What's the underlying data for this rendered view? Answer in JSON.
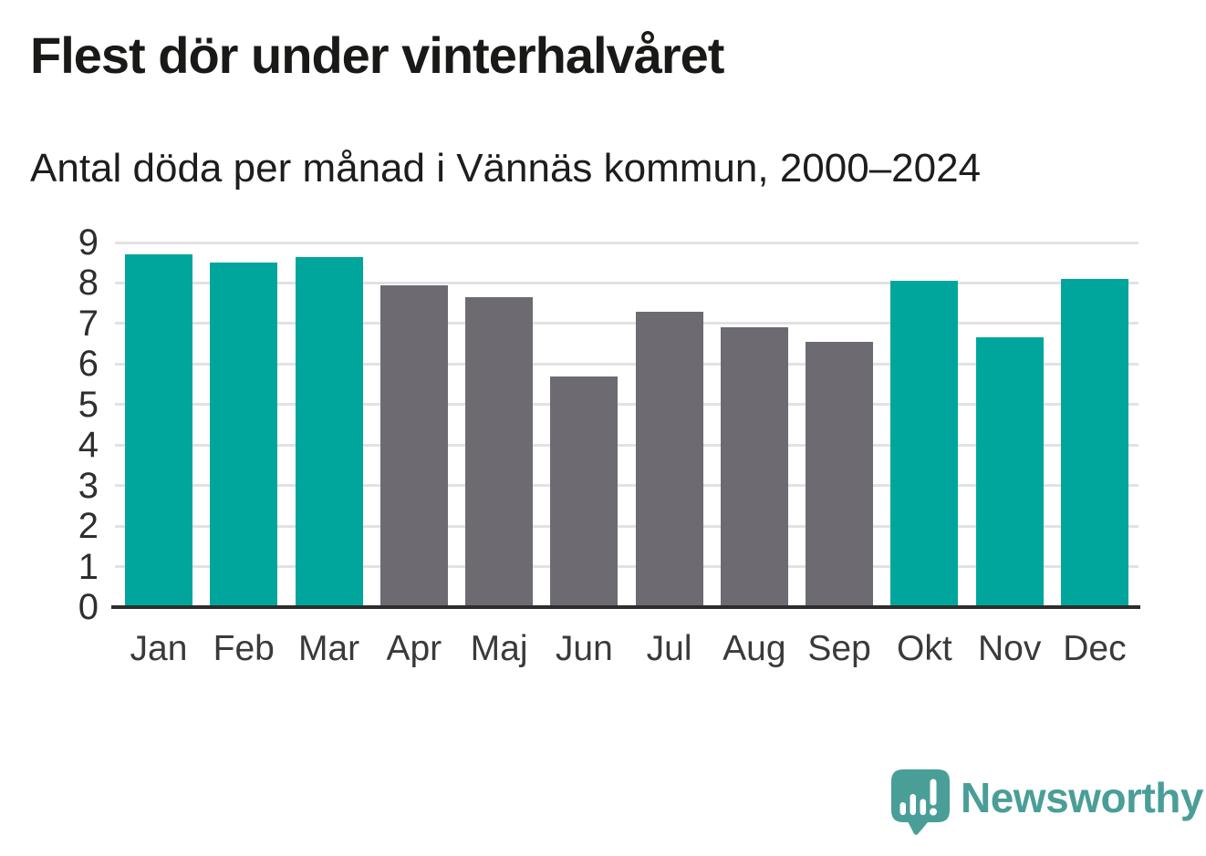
{
  "title": "Flest dör under vinterhalvåret",
  "subtitle": "Antal döda per månad i Vännäs kommun, 2000–2024",
  "branding": {
    "logo_text": "Newsworthy",
    "logo_icon": "speech-bubble-with-bar-chart-and-exclamation"
  },
  "colors": {
    "winter": "#00a69c",
    "summer": "#6d6a72",
    "gridline": "#e2e2e2",
    "baseline": "#2d2d2d",
    "title_text": "#191917",
    "subtitle_text": "#1d1d1d",
    "axis_label": "#2e2e2e",
    "month_label": "#3a3a3a",
    "logo_teal": "#4a9e98",
    "background": "#ffffff"
  },
  "chart_data": {
    "type": "bar",
    "title": "Flest dör under vinterhalvåret",
    "subtitle": "Antal döda per månad i Vännäs kommun, 2000–2024",
    "categories": [
      "Jan",
      "Feb",
      "Mar",
      "Apr",
      "Maj",
      "Jun",
      "Jul",
      "Aug",
      "Sep",
      "Okt",
      "Nov",
      "Dec"
    ],
    "values": [
      8.7,
      8.5,
      8.65,
      7.95,
      7.65,
      5.7,
      7.3,
      6.9,
      6.55,
      8.05,
      6.65,
      8.1
    ],
    "bar_color_keys": [
      "winter",
      "winter",
      "winter",
      "summer",
      "summer",
      "summer",
      "summer",
      "summer",
      "summer",
      "winter",
      "winter",
      "winter"
    ],
    "xlabel": "",
    "ylabel": "",
    "ylim": [
      0,
      9
    ],
    "yticks": [
      0,
      1,
      2,
      3,
      4,
      5,
      6,
      7,
      8,
      9
    ],
    "grid": "horizontal",
    "legend": "none"
  }
}
